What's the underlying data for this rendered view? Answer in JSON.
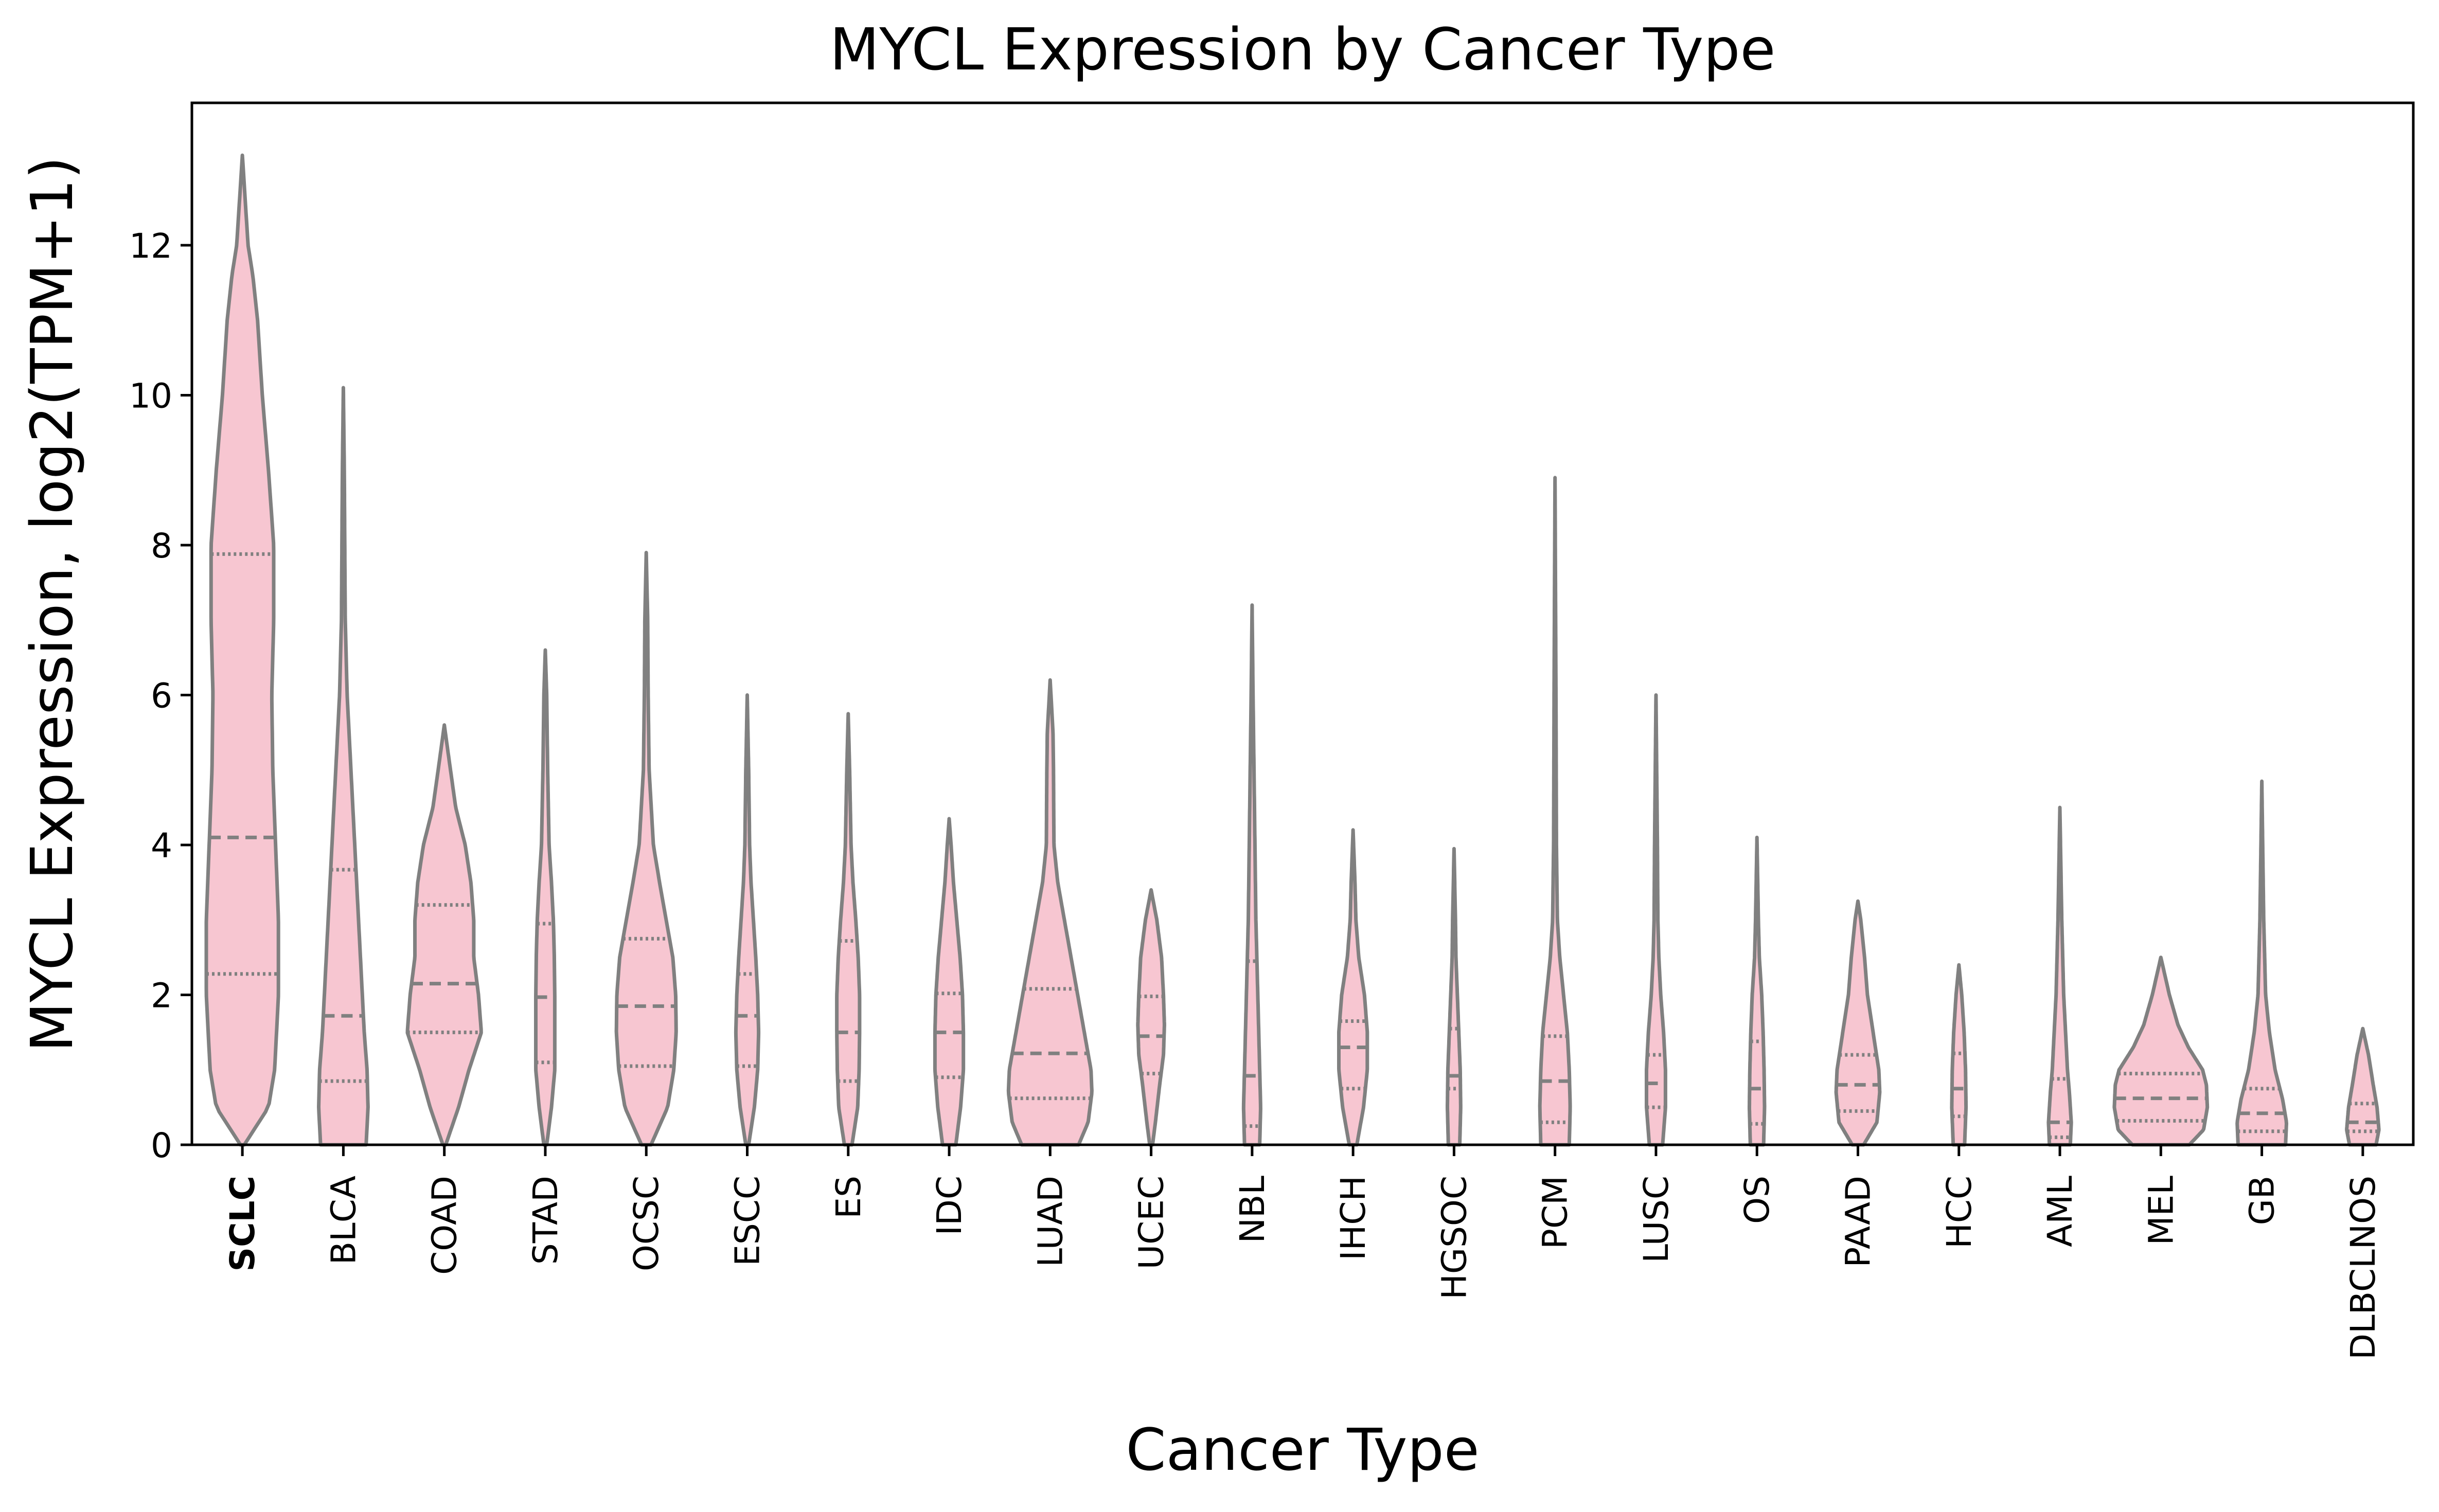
{
  "chart_data": {
    "type": "violin",
    "title": "MYCL Expression by Cancer Type",
    "xlabel": "Cancer Type",
    "ylabel": "MYCL Expression, log2(TPM+1)",
    "ylim": [
      0,
      13.9
    ],
    "yticks": [
      0,
      2,
      4,
      6,
      8,
      10,
      12
    ],
    "grid": false,
    "legend": "none",
    "highlighted_category": "SCLC",
    "colors": {
      "fill": "#f7c6d1",
      "stroke": "#808080",
      "axis": "#000000"
    },
    "categories": [
      "SCLC",
      "BLCA",
      "COAD",
      "STAD",
      "OCSC",
      "ESCC",
      "ES",
      "IDC",
      "LUAD",
      "UCEC",
      "NBL",
      "IHCH",
      "HGSOC",
      "PCM",
      "LUSC",
      "OS",
      "PAAD",
      "HCC",
      "AML",
      "MEL",
      "GB",
      "DLBCLNOS"
    ],
    "violins": [
      {
        "label": "SCLC",
        "min": 0,
        "max": 13.2,
        "q1": 2.28,
        "median": 4.1,
        "q3": 7.88,
        "profile": [
          [
            0,
            0.04
          ],
          [
            0.5,
            0.55
          ],
          [
            1.0,
            0.68
          ],
          [
            2.0,
            0.76
          ],
          [
            3.0,
            0.76
          ],
          [
            4.0,
            0.7
          ],
          [
            5.0,
            0.64
          ],
          [
            6.0,
            0.62
          ],
          [
            7.0,
            0.66
          ],
          [
            8.0,
            0.66
          ],
          [
            9.0,
            0.55
          ],
          [
            10.0,
            0.42
          ],
          [
            11.0,
            0.32
          ],
          [
            11.6,
            0.22
          ],
          [
            12.0,
            0.12
          ],
          [
            12.5,
            0.07
          ],
          [
            13.2,
            0.0
          ]
        ]
      },
      {
        "label": "BLCA",
        "min": 0,
        "max": 10.1,
        "q1": 0.85,
        "median": 1.72,
        "q3": 3.67,
        "profile": [
          [
            0,
            0.48
          ],
          [
            0.5,
            0.52
          ],
          [
            1.0,
            0.5
          ],
          [
            1.5,
            0.44
          ],
          [
            2.0,
            0.4
          ],
          [
            3.0,
            0.32
          ],
          [
            4.0,
            0.24
          ],
          [
            5.0,
            0.16
          ],
          [
            6.0,
            0.08
          ],
          [
            7.0,
            0.04
          ],
          [
            8.0,
            0.03
          ],
          [
            9.0,
            0.02
          ],
          [
            10.1,
            0.0
          ]
        ]
      },
      {
        "label": "COAD",
        "min": 0,
        "max": 5.6,
        "q1": 1.5,
        "median": 2.15,
        "q3": 3.2,
        "profile": [
          [
            0,
            0.03
          ],
          [
            0.5,
            0.3
          ],
          [
            1.0,
            0.52
          ],
          [
            1.5,
            0.78
          ],
          [
            2.0,
            0.72
          ],
          [
            2.5,
            0.62
          ],
          [
            3.0,
            0.62
          ],
          [
            3.5,
            0.56
          ],
          [
            4.0,
            0.44
          ],
          [
            4.5,
            0.24
          ],
          [
            5.0,
            0.13
          ],
          [
            5.6,
            0.0
          ]
        ]
      },
      {
        "label": "STAD",
        "min": 0,
        "max": 6.6,
        "q1": 1.1,
        "median": 1.97,
        "q3": 2.95,
        "profile": [
          [
            0,
            0.03
          ],
          [
            0.5,
            0.13
          ],
          [
            1.0,
            0.2
          ],
          [
            1.5,
            0.2
          ],
          [
            2.0,
            0.2
          ],
          [
            2.5,
            0.19
          ],
          [
            3.0,
            0.17
          ],
          [
            3.5,
            0.13
          ],
          [
            4.0,
            0.08
          ],
          [
            5.0,
            0.05
          ],
          [
            6.0,
            0.03
          ],
          [
            6.6,
            0.0
          ]
        ]
      },
      {
        "label": "OCSC",
        "min": 0,
        "max": 7.9,
        "q1": 1.05,
        "median": 1.85,
        "q3": 2.75,
        "profile": [
          [
            0,
            0.1
          ],
          [
            0.5,
            0.45
          ],
          [
            1.0,
            0.58
          ],
          [
            1.5,
            0.63
          ],
          [
            2.0,
            0.62
          ],
          [
            2.5,
            0.56
          ],
          [
            3.0,
            0.42
          ],
          [
            3.5,
            0.28
          ],
          [
            4.0,
            0.15
          ],
          [
            5.0,
            0.06
          ],
          [
            6.0,
            0.04
          ],
          [
            7.0,
            0.03
          ],
          [
            7.9,
            0.0
          ]
        ]
      },
      {
        "label": "ESCC",
        "min": 0,
        "max": 6.0,
        "q1": 1.05,
        "median": 1.72,
        "q3": 2.28,
        "profile": [
          [
            0,
            0.03
          ],
          [
            0.5,
            0.15
          ],
          [
            1.0,
            0.22
          ],
          [
            1.5,
            0.24
          ],
          [
            2.0,
            0.22
          ],
          [
            2.5,
            0.18
          ],
          [
            3.0,
            0.13
          ],
          [
            3.5,
            0.08
          ],
          [
            4.0,
            0.05
          ],
          [
            5.0,
            0.03
          ],
          [
            6.0,
            0.0
          ]
        ]
      },
      {
        "label": "ES",
        "min": 0,
        "max": 5.75,
        "q1": 0.85,
        "median": 1.5,
        "q3": 2.72,
        "profile": [
          [
            0,
            0.08
          ],
          [
            0.5,
            0.2
          ],
          [
            1.0,
            0.23
          ],
          [
            1.5,
            0.24
          ],
          [
            2.0,
            0.24
          ],
          [
            2.5,
            0.21
          ],
          [
            3.0,
            0.16
          ],
          [
            3.5,
            0.1
          ],
          [
            4.0,
            0.06
          ],
          [
            5.0,
            0.03
          ],
          [
            5.75,
            0.0
          ]
        ]
      },
      {
        "label": "IDC",
        "min": 0,
        "max": 4.35,
        "q1": 0.9,
        "median": 1.5,
        "q3": 2.02,
        "profile": [
          [
            0,
            0.14
          ],
          [
            0.5,
            0.24
          ],
          [
            1.0,
            0.3
          ],
          [
            1.5,
            0.3
          ],
          [
            2.0,
            0.28
          ],
          [
            2.5,
            0.23
          ],
          [
            3.0,
            0.16
          ],
          [
            3.5,
            0.09
          ],
          [
            4.0,
            0.04
          ],
          [
            4.35,
            0.0
          ]
        ]
      },
      {
        "label": "LUAD",
        "min": 0,
        "max": 6.2,
        "q1": 0.62,
        "median": 1.22,
        "q3": 2.08,
        "profile": [
          [
            0,
            0.6
          ],
          [
            0.3,
            0.8
          ],
          [
            0.7,
            0.88
          ],
          [
            1.0,
            0.86
          ],
          [
            1.5,
            0.72
          ],
          [
            2.0,
            0.58
          ],
          [
            2.5,
            0.44
          ],
          [
            3.0,
            0.3
          ],
          [
            3.5,
            0.16
          ],
          [
            4.0,
            0.08
          ],
          [
            5.0,
            0.07
          ],
          [
            5.5,
            0.06
          ],
          [
            6.2,
            0.0
          ]
        ]
      },
      {
        "label": "UCEC",
        "min": 0,
        "max": 3.4,
        "q1": 0.95,
        "median": 1.45,
        "q3": 1.98,
        "profile": [
          [
            0,
            0.03
          ],
          [
            0.3,
            0.09
          ],
          [
            0.8,
            0.18
          ],
          [
            1.2,
            0.26
          ],
          [
            1.6,
            0.28
          ],
          [
            2.0,
            0.26
          ],
          [
            2.5,
            0.22
          ],
          [
            3.0,
            0.12
          ],
          [
            3.4,
            0.0
          ]
        ]
      },
      {
        "label": "NBL",
        "min": 0,
        "max": 7.2,
        "q1": 0.25,
        "median": 0.92,
        "q3": 2.45,
        "profile": [
          [
            0,
            0.16
          ],
          [
            0.5,
            0.18
          ],
          [
            1.0,
            0.16
          ],
          [
            1.5,
            0.14
          ],
          [
            2.0,
            0.12
          ],
          [
            2.5,
            0.1
          ],
          [
            3.0,
            0.08
          ],
          [
            4.0,
            0.06
          ],
          [
            5.0,
            0.04
          ],
          [
            6.0,
            0.02
          ],
          [
            7.2,
            0.0
          ]
        ]
      },
      {
        "label": "IHCH",
        "min": 0,
        "max": 4.2,
        "q1": 0.75,
        "median": 1.3,
        "q3": 1.65,
        "profile": [
          [
            0,
            0.08
          ],
          [
            0.5,
            0.22
          ],
          [
            1.0,
            0.3
          ],
          [
            1.5,
            0.3
          ],
          [
            2.0,
            0.24
          ],
          [
            2.5,
            0.12
          ],
          [
            3.0,
            0.06
          ],
          [
            3.5,
            0.04
          ],
          [
            4.2,
            0.0
          ]
        ]
      },
      {
        "label": "HGSOC",
        "min": 0,
        "max": 3.95,
        "q1": 0.75,
        "median": 0.92,
        "q3": 1.55,
        "profile": [
          [
            0,
            0.12
          ],
          [
            0.5,
            0.14
          ],
          [
            1.0,
            0.13
          ],
          [
            1.5,
            0.1
          ],
          [
            2.0,
            0.07
          ],
          [
            2.5,
            0.04
          ],
          [
            3.0,
            0.03
          ],
          [
            3.95,
            0.0
          ]
        ]
      },
      {
        "label": "PCM",
        "min": 0,
        "max": 8.9,
        "q1": 0.3,
        "median": 0.85,
        "q3": 1.45,
        "profile": [
          [
            0,
            0.3
          ],
          [
            0.5,
            0.32
          ],
          [
            1.0,
            0.3
          ],
          [
            1.5,
            0.26
          ],
          [
            2.0,
            0.18
          ],
          [
            2.5,
            0.1
          ],
          [
            3.0,
            0.05
          ],
          [
            4.0,
            0.03
          ],
          [
            6.0,
            0.02
          ],
          [
            8.9,
            0.0
          ]
        ]
      },
      {
        "label": "LUSC",
        "min": 0,
        "max": 6.0,
        "q1": 0.5,
        "median": 0.82,
        "q3": 1.2,
        "profile": [
          [
            0,
            0.14
          ],
          [
            0.5,
            0.2
          ],
          [
            1.0,
            0.2
          ],
          [
            1.5,
            0.16
          ],
          [
            2.0,
            0.1
          ],
          [
            2.5,
            0.06
          ],
          [
            3.0,
            0.04
          ],
          [
            4.0,
            0.03
          ],
          [
            6.0,
            0.0
          ]
        ]
      },
      {
        "label": "OS",
        "min": 0,
        "max": 4.1,
        "q1": 0.28,
        "median": 0.75,
        "q3": 1.38,
        "profile": [
          [
            0,
            0.14
          ],
          [
            0.5,
            0.16
          ],
          [
            1.0,
            0.15
          ],
          [
            1.5,
            0.13
          ],
          [
            2.0,
            0.1
          ],
          [
            2.5,
            0.05
          ],
          [
            3.0,
            0.03
          ],
          [
            4.1,
            0.0
          ]
        ]
      },
      {
        "label": "PAAD",
        "min": 0,
        "max": 3.25,
        "q1": 0.45,
        "median": 0.8,
        "q3": 1.2,
        "profile": [
          [
            0,
            0.12
          ],
          [
            0.3,
            0.4
          ],
          [
            0.7,
            0.46
          ],
          [
            1.0,
            0.44
          ],
          [
            1.5,
            0.32
          ],
          [
            2.0,
            0.2
          ],
          [
            2.5,
            0.14
          ],
          [
            3.0,
            0.06
          ],
          [
            3.25,
            0.0
          ]
        ]
      },
      {
        "label": "HCC",
        "min": 0,
        "max": 2.4,
        "q1": 0.38,
        "median": 0.75,
        "q3": 1.22,
        "profile": [
          [
            0,
            0.12
          ],
          [
            0.5,
            0.15
          ],
          [
            1.0,
            0.14
          ],
          [
            1.5,
            0.11
          ],
          [
            2.0,
            0.06
          ],
          [
            2.4,
            0.0
          ]
        ]
      },
      {
        "label": "AML",
        "min": 0,
        "max": 4.5,
        "q1": 0.1,
        "median": 0.3,
        "q3": 0.88,
        "profile": [
          [
            0,
            0.22
          ],
          [
            0.3,
            0.24
          ],
          [
            0.7,
            0.2
          ],
          [
            1.0,
            0.16
          ],
          [
            1.5,
            0.12
          ],
          [
            2.0,
            0.08
          ],
          [
            2.5,
            0.06
          ],
          [
            3.0,
            0.04
          ],
          [
            4.5,
            0.0
          ]
        ]
      },
      {
        "label": "MEL",
        "min": 0,
        "max": 2.5,
        "q1": 0.32,
        "median": 0.62,
        "q3": 0.95,
        "profile": [
          [
            0,
            0.6
          ],
          [
            0.2,
            0.9
          ],
          [
            0.5,
            0.98
          ],
          [
            0.8,
            0.96
          ],
          [
            1.0,
            0.88
          ],
          [
            1.3,
            0.58
          ],
          [
            1.6,
            0.36
          ],
          [
            2.0,
            0.18
          ],
          [
            2.5,
            0.0
          ]
        ]
      },
      {
        "label": "GB",
        "min": 0,
        "max": 4.85,
        "q1": 0.18,
        "median": 0.42,
        "q3": 0.75,
        "profile": [
          [
            0,
            0.5
          ],
          [
            0.3,
            0.52
          ],
          [
            0.6,
            0.44
          ],
          [
            1.0,
            0.28
          ],
          [
            1.5,
            0.16
          ],
          [
            2.0,
            0.08
          ],
          [
            3.0,
            0.04
          ],
          [
            4.85,
            0.0
          ]
        ]
      },
      {
        "label": "DLBCLNOS",
        "min": 0,
        "max": 1.55,
        "q1": 0.18,
        "median": 0.3,
        "q3": 0.55,
        "profile": [
          [
            0,
            0.28
          ],
          [
            0.2,
            0.34
          ],
          [
            0.5,
            0.3
          ],
          [
            0.8,
            0.22
          ],
          [
            1.2,
            0.12
          ],
          [
            1.55,
            0.0
          ]
        ]
      }
    ]
  }
}
